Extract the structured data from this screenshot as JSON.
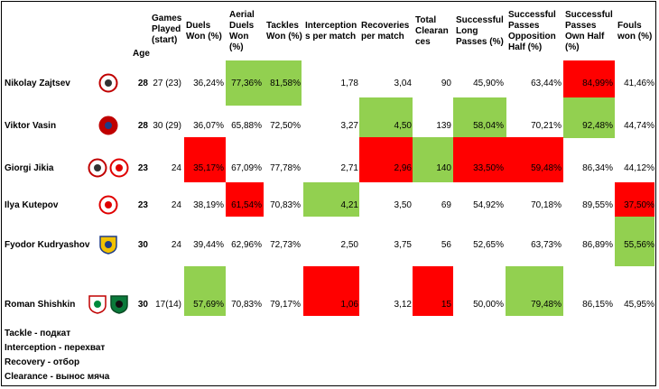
{
  "headers": {
    "age": "Age",
    "games": "Games\nPlayed\n(start)",
    "duels": "Duels\nWon (%)",
    "aerial": "Aerial\nDuels\nWon\n(%)",
    "tackles": "Tackles\nWon (%)",
    "interceptions": "Interception\ns per match",
    "recoveries": "Recoveries\nper match",
    "clearances": "Total\nClearan\nces",
    "long_passes": "Successful\nLong\nPasses (%)",
    "opp_half": "Successful\nPasses\nOpposition\nHalf (%)",
    "own_half": "Successful\nPasses\nOwn Half\n(%)",
    "fouls": "Fouls\nwon (%)"
  },
  "players": [
    {
      "name": "Nikolay Zajtsev",
      "age": "28",
      "games": "27 (23)",
      "duels": "36,24%",
      "aerial": "77,36%",
      "tackles": "81,58%",
      "interceptions": "1,78",
      "recoveries": "3,04",
      "clearances": "90",
      "long_passes": "45,90%",
      "opp_half": "63,44%",
      "own_half": "84,99%",
      "fouls": "41,46%",
      "clubs": [
        "amkar"
      ]
    },
    {
      "name": "Viktor Vasin",
      "age": "28",
      "games": "30 (29)",
      "duels": "36,07%",
      "aerial": "65,88%",
      "tackles": "72,50%",
      "interceptions": "3,27",
      "recoveries": "4,50",
      "clearances": "139",
      "long_passes": "58,04%",
      "opp_half": "70,21%",
      "own_half": "92,48%",
      "fouls": "44,74%",
      "clubs": [
        "cska"
      ]
    },
    {
      "name": "Giorgi Jikia",
      "age": "23",
      "games": "24",
      "duels": "35,17%",
      "aerial": "67,09%",
      "tackles": "77,78%",
      "interceptions": "2,71",
      "recoveries": "2,96",
      "clearances": "140",
      "long_passes": "33,50%",
      "opp_half": "59,48%",
      "own_half": "86,34%",
      "fouls": "44,12%",
      "clubs": [
        "amkar",
        "spartak"
      ]
    },
    {
      "name": "Ilya Kutepov",
      "age": "23",
      "games": "24",
      "duels": "38,19%",
      "aerial": "61,54%",
      "tackles": "70,83%",
      "interceptions": "4,21",
      "recoveries": "3,50",
      "clearances": "69",
      "long_passes": "54,92%",
      "opp_half": "70,18%",
      "own_half": "89,55%",
      "fouls": "37,50%",
      "clubs": [
        "spartak"
      ]
    },
    {
      "name": "Fyodor Kudryashov",
      "age": "30",
      "games": "24",
      "duels": "39,44%",
      "aerial": "62,96%",
      "tackles": "72,73%",
      "interceptions": "2,50",
      "recoveries": "3,75",
      "clearances": "56",
      "long_passes": "52,65%",
      "opp_half": "63,73%",
      "own_half": "86,89%",
      "fouls": "55,56%",
      "clubs": [
        "rostov"
      ]
    },
    {
      "name": "Roman Shishkin",
      "age": "30",
      "games": "17(14)",
      "duels": "57,69%",
      "aerial": "70,83%",
      "tackles": "79,17%",
      "interceptions": "1,06",
      "recoveries": "3,12",
      "clearances": "15",
      "long_passes": "50,00%",
      "opp_half": "79,48%",
      "own_half": "86,15%",
      "fouls": "45,95%",
      "clubs": [
        "lokomotiv",
        "krasnodar"
      ]
    }
  ],
  "legend": [
    "Tackle - подкат",
    "Interception - перехват",
    "Recovery - отбор",
    "Clearance - вынос мяча"
  ],
  "colors": {
    "best": "#92d050",
    "worst": "#ff0000"
  }
}
